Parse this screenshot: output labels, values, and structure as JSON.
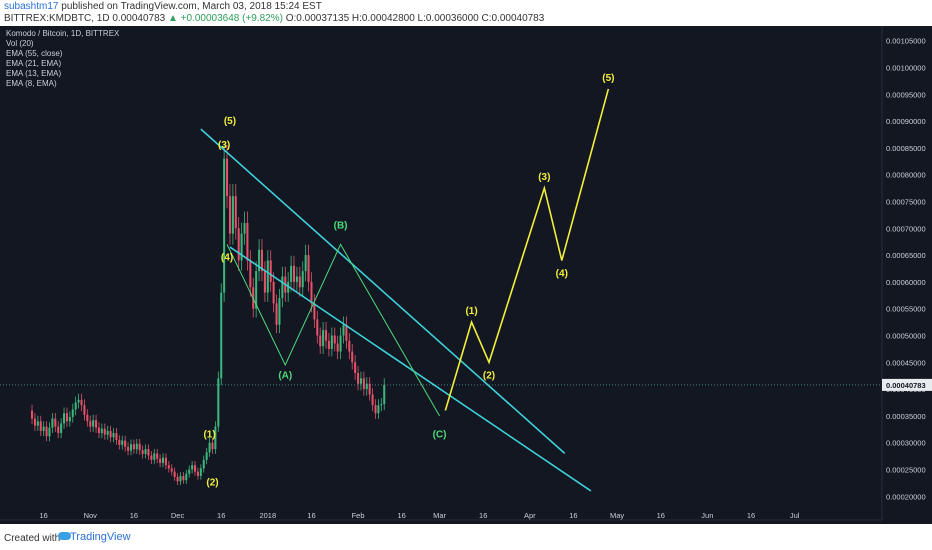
{
  "header": {
    "author": "subashtm17",
    "published": "published on TradingView.com, March 03, 2018 15:24 EST",
    "symbol": "BITTREX:KMDBTC, 1D",
    "last": "0.00040783",
    "change": "▲ +0.00003648 (+9.82%)",
    "ohlc": "O:0.00037135 H:0.00042800 L:0.00036000 C:0.00040783"
  },
  "legend": [
    "Komodo / Bitcoin, 1D, BITTREX",
    "Vol (20)",
    "EMA (55, close)",
    "EMA (21, EMA)",
    "EMA (13, EMA)",
    "EMA (8, EMA)"
  ],
  "footer": {
    "created": "Created with",
    "brand": "TradingView"
  },
  "colors": {
    "background": "#131722",
    "bull": "#3ab87c",
    "bear": "#e8516a",
    "channel": "#3fd0d8",
    "projection": "#f2ef3a",
    "abc": "#4ddb7b",
    "price_tag": "#e9ecef",
    "ema55": "#8a6fd1",
    "ema21": "#4a67c8",
    "ema13": "#c98a2e",
    "ema8": "#b3a05a"
  },
  "chart_data": {
    "type": "candlestick",
    "title": "Komodo / Bitcoin, 1D, BITTREX",
    "y_axis_side": "right",
    "ylim": [
      0.00018,
      0.00107
    ],
    "yticks": [
      "0.00020000",
      "0.00025000",
      "0.00030000",
      "0.00035000",
      "0.00040000",
      "0.00045000",
      "0.00050000",
      "0.00055000",
      "0.00060000",
      "0.00065000",
      "0.00070000",
      "0.00075000",
      "0.00080000",
      "0.00085000",
      "0.00090000",
      "0.00095000",
      "0.00100000",
      "0.00105000"
    ],
    "xticks": [
      "16",
      "Nov",
      "16",
      "Dec",
      "16",
      "2018",
      "16",
      "Feb",
      "16",
      "Mar",
      "16",
      "Apr",
      "16",
      "May",
      "16",
      "Jun",
      "16",
      "Jul"
    ],
    "last_price_label": "0.00040783",
    "last_price": 0.00040783,
    "candles": {
      "start": "2017-10-12",
      "values": [
        [
          0.00036,
          0.000345
        ],
        [
          0.000345,
          0.000332
        ],
        [
          0.000332,
          0.00034
        ],
        [
          0.00034,
          0.000322
        ],
        [
          0.000322,
          0.00033
        ],
        [
          0.00033,
          0.000312
        ],
        [
          0.000312,
          0.000328
        ],
        [
          0.000328,
          0.000345
        ],
        [
          0.000345,
          0.00033
        ],
        [
          0.00033,
          0.000318
        ],
        [
          0.000318,
          0.000336
        ],
        [
          0.000336,
          0.000355
        ],
        [
          0.000355,
          0.00034
        ],
        [
          0.00034,
          0.000348
        ],
        [
          0.000348,
          0.000362
        ],
        [
          0.000362,
          0.000375
        ],
        [
          0.000375,
          0.00038
        ],
        [
          0.00038,
          0.00037
        ],
        [
          0.00037,
          0.000352
        ],
        [
          0.000352,
          0.00034
        ],
        [
          0.00034,
          0.00033
        ],
        [
          0.00033,
          0.000342
        ],
        [
          0.000342,
          0.000328
        ],
        [
          0.000328,
          0.000318
        ],
        [
          0.000318,
          0.000326
        ],
        [
          0.000326,
          0.000315
        ],
        [
          0.000315,
          0.000322
        ],
        [
          0.000322,
          0.00031
        ],
        [
          0.00031,
          0.000318
        ],
        [
          0.000318,
          0.000305
        ],
        [
          0.000305,
          0.000296
        ],
        [
          0.000296,
          0.000304
        ],
        [
          0.000304,
          0.000292
        ],
        [
          0.000292,
          0.000285
        ],
        [
          0.000285,
          0.000297
        ],
        [
          0.000297,
          0.000288
        ],
        [
          0.000288,
          0.000298
        ],
        [
          0.000298,
          0.000286
        ],
        [
          0.000286,
          0.000279
        ],
        [
          0.000279,
          0.000288
        ],
        [
          0.000288,
          0.000276
        ],
        [
          0.000276,
          0.000268
        ],
        [
          0.000268,
          0.00028
        ],
        [
          0.00028,
          0.00027
        ],
        [
          0.00027,
          0.000262
        ],
        [
          0.000262,
          0.000272
        ],
        [
          0.000272,
          0.000258
        ],
        [
          0.000258,
          0.000252
        ],
        [
          0.000252,
          0.000246
        ],
        [
          0.000246,
          0.000236
        ],
        [
          0.000236,
          0.000228
        ],
        [
          0.000228,
          0.000238
        ],
        [
          0.000238,
          0.00023
        ],
        [
          0.00023,
          0.000242
        ],
        [
          0.000242,
          0.00025
        ],
        [
          0.00025,
          0.000258
        ],
        [
          0.000258,
          0.000246
        ],
        [
          0.000246,
          0.000238
        ],
        [
          0.000238,
          0.000252
        ],
        [
          0.000252,
          0.000268
        ],
        [
          0.000268,
          0.000282
        ],
        [
          0.000282,
          0.0003
        ],
        [
          0.0003,
          0.000288
        ],
        [
          0.000288,
          0.00033
        ],
        [
          0.00033,
          0.00042
        ],
        [
          0.00042,
          0.00058
        ],
        [
          0.00058,
          0.00083
        ],
        [
          0.00083,
          0.00076
        ],
        [
          0.00076,
          0.00069
        ],
        [
          0.00069,
          0.00076
        ],
        [
          0.00076,
          0.0007
        ],
        [
          0.0007,
          0.00064
        ],
        [
          0.00064,
          0.00069
        ],
        [
          0.00069,
          0.00071
        ],
        [
          0.00071,
          0.00064
        ],
        [
          0.00064,
          0.00059
        ],
        [
          0.00059,
          0.00055
        ],
        [
          0.00055,
          0.00062
        ],
        [
          0.00062,
          0.00066
        ],
        [
          0.00066,
          0.00062
        ],
        [
          0.00062,
          0.00058
        ],
        [
          0.00058,
          0.00064
        ],
        [
          0.00064,
          0.0006
        ],
        [
          0.0006,
          0.00056
        ],
        [
          0.00056,
          0.00052
        ],
        [
          0.00052,
          0.00057
        ],
        [
          0.00057,
          0.00061
        ],
        [
          0.00061,
          0.00058
        ],
        [
          0.00058,
          0.0006
        ],
        [
          0.0006,
          0.00063
        ],
        [
          0.00063,
          0.0006
        ],
        [
          0.0006,
          0.00061
        ],
        [
          0.00061,
          0.00059
        ],
        [
          0.00059,
          0.00062
        ],
        [
          0.00062,
          0.00065
        ],
        [
          0.00065,
          0.0006
        ],
        [
          0.0006,
          0.00056
        ],
        [
          0.00056,
          0.00053
        ],
        [
          0.00053,
          0.0005
        ],
        [
          0.0005,
          0.00048
        ],
        [
          0.00048,
          0.00051
        ],
        [
          0.00051,
          0.00049
        ],
        [
          0.00049,
          0.000475
        ],
        [
          0.000475,
          0.0005
        ],
        [
          0.0005,
          0.000485
        ],
        [
          0.000485,
          0.00047
        ],
        [
          0.00047,
          0.0005
        ],
        [
          0.0005,
          0.00052
        ],
        [
          0.00052,
          0.00049
        ],
        [
          0.00049,
          0.00047
        ],
        [
          0.00047,
          0.00045
        ],
        [
          0.00045,
          0.00043
        ],
        [
          0.00043,
          0.00041
        ],
        [
          0.00041,
          0.00042
        ],
        [
          0.00042,
          0.0004
        ],
        [
          0.0004,
          0.00041
        ],
        [
          0.00041,
          0.00039
        ],
        [
          0.00039,
          0.00037
        ],
        [
          0.00037,
          0.000355
        ],
        [
          0.000355,
          0.00037
        ],
        [
          0.00037,
          0.000372
        ],
        [
          0.000372,
          0.000408
        ]
      ]
    },
    "channel_lines": [
      {
        "points": [
          [
            "2017-12-09",
            0.000885
          ],
          [
            "2018-04-13",
            0.00028
          ]
        ]
      },
      {
        "points": [
          [
            "2017-12-19",
            0.000665
          ],
          [
            "2018-04-22",
            0.00021
          ]
        ]
      }
    ],
    "projection": {
      "points": [
        [
          "2018-03-03",
          0.00036
        ],
        [
          "2018-03-12",
          0.000525
        ],
        [
          "2018-03-18",
          0.00045
        ],
        [
          "2018-04-06",
          0.000775
        ],
        [
          "2018-04-12",
          0.00064
        ],
        [
          "2018-04-28",
          0.00096
        ]
      ],
      "labels": [
        "(1)",
        "(2)",
        "(3)",
        "(4)",
        "(5)"
      ]
    },
    "wave_labels_yellow": [
      {
        "text": "(5)",
        "x": "2017-12-19",
        "y": 0.000895
      },
      {
        "text": "(3)",
        "x": "2017-12-17",
        "y": 0.00085
      },
      {
        "text": "(4)",
        "x": "2017-12-18",
        "y": 0.00064
      },
      {
        "text": "(1)",
        "x": "2017-12-12",
        "y": 0.00031
      },
      {
        "text": "(2)",
        "x": "2017-12-13",
        "y": 0.00022
      }
    ],
    "wave_labels_green": [
      {
        "text": "(A)",
        "x": "2018-01-07",
        "y": 0.00042
      },
      {
        "text": "(B)",
        "x": "2018-01-26",
        "y": 0.0007
      },
      {
        "text": "(C)",
        "x": "2018-03-01",
        "y": 0.00031
      }
    ],
    "abc_path": [
      [
        "2017-12-18",
        0.00067
      ],
      [
        "2018-01-07",
        0.000445
      ],
      [
        "2018-01-26",
        0.00067
      ],
      [
        "2018-03-01",
        0.00035
      ]
    ]
  }
}
